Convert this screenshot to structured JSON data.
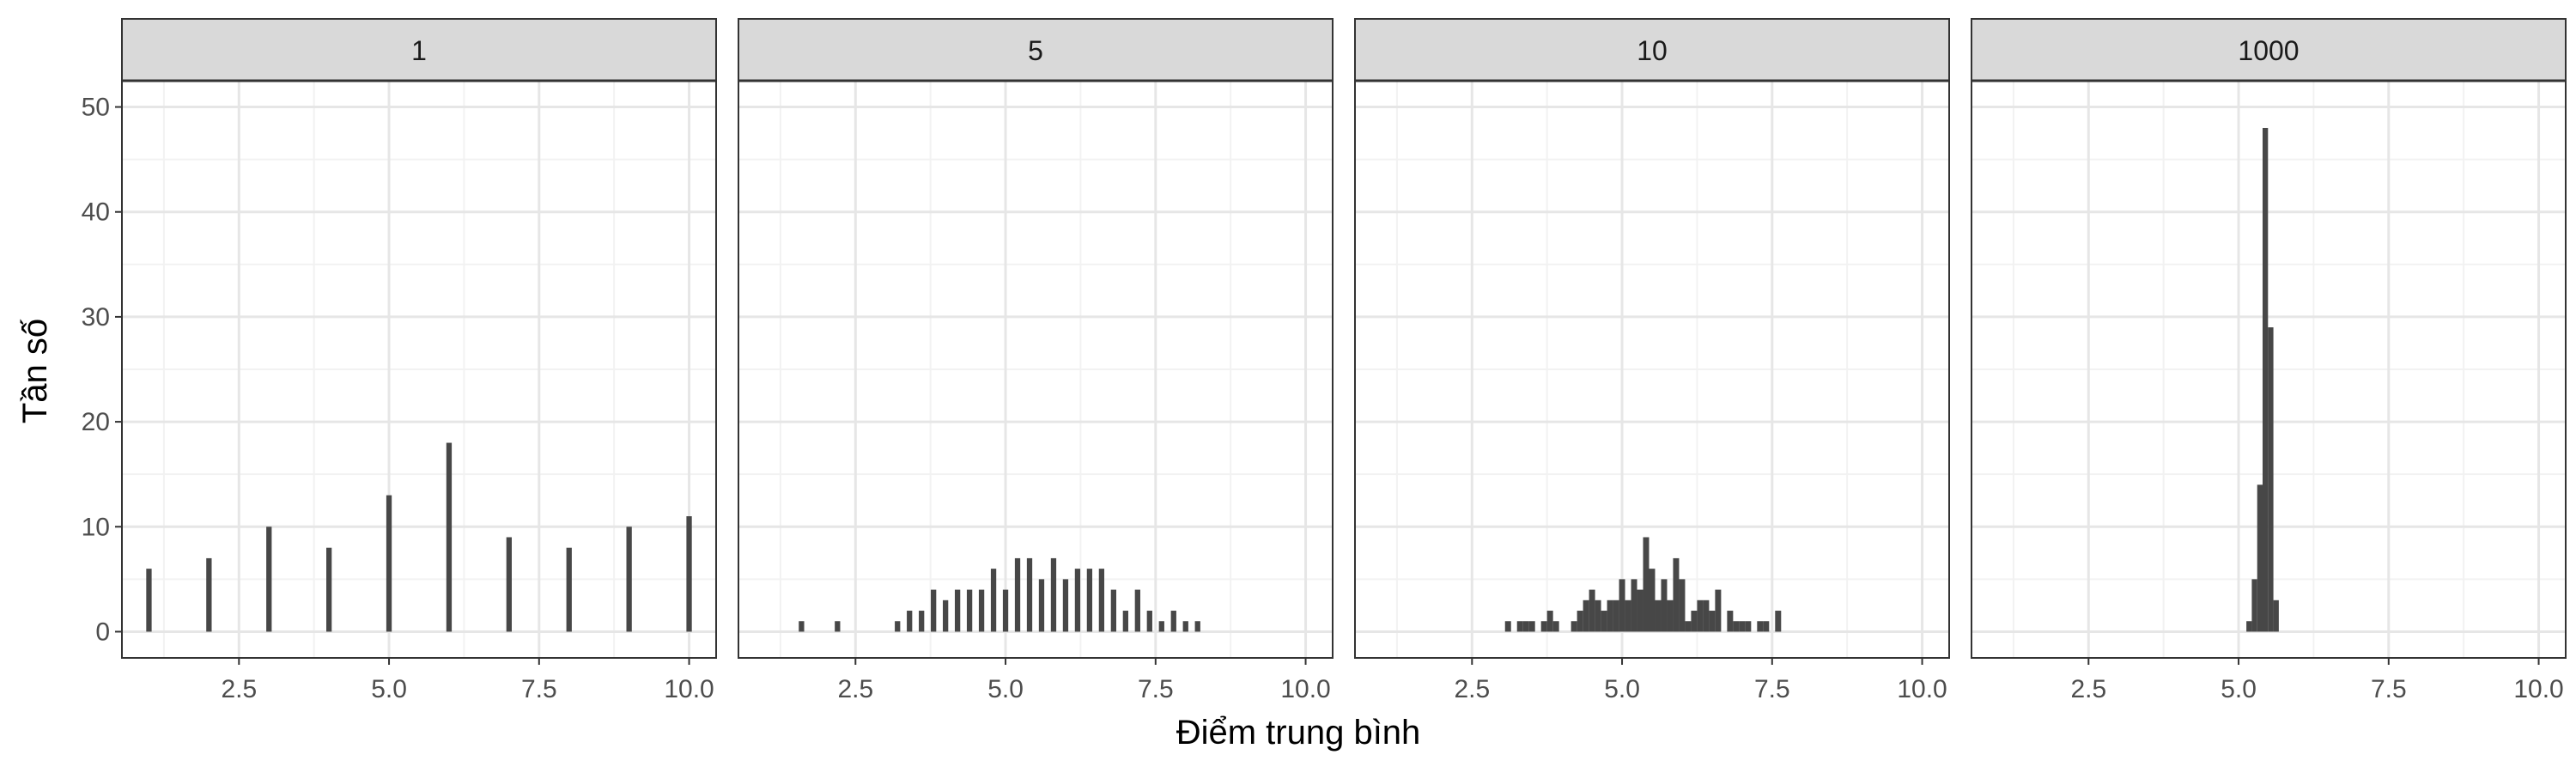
{
  "colors": {
    "bar": "#474747",
    "strip_bg": "#d9d9d9",
    "grid_major": "#e6e6e6",
    "grid_minor": "#f2f2f2",
    "panel_border": "#333333"
  },
  "chart_data": {
    "type": "bar",
    "facet_variable": "sample size",
    "xlabel": "Điểm trung bình",
    "ylabel": "Tần số",
    "xlim": [
      0.55,
      10.45
    ],
    "ylim": [
      -2.5,
      52.5
    ],
    "x_ticks": [
      "2.5",
      "5.0",
      "7.5",
      "10.0"
    ],
    "y_ticks": [
      "0",
      "10",
      "20",
      "30",
      "40",
      "50"
    ],
    "grid": true,
    "panels": [
      {
        "label": "1",
        "bin_width": 0.09,
        "x": [
          1,
          2,
          3,
          4,
          5,
          6,
          7,
          8,
          9,
          10
        ],
        "values": [
          6,
          7,
          10,
          8,
          13,
          18,
          9,
          8,
          10,
          11
        ]
      },
      {
        "label": "5",
        "bin_width": 0.09,
        "x": [
          1.6,
          2.2,
          3.2,
          3.4,
          3.6,
          3.8,
          4.0,
          4.2,
          4.4,
          4.6,
          4.8,
          5.0,
          5.2,
          5.4,
          5.6,
          5.8,
          6.0,
          6.2,
          6.4,
          6.6,
          6.8,
          7.0,
          7.2,
          7.4,
          7.6,
          7.8,
          8.0,
          8.2
        ],
        "values": [
          1,
          1,
          1,
          2,
          2,
          4,
          3,
          4,
          4,
          4,
          6,
          4,
          7,
          7,
          5,
          7,
          5,
          6,
          6,
          6,
          4,
          2,
          4,
          2,
          1,
          2,
          1,
          1
        ]
      },
      {
        "label": "10",
        "bin_width": 0.1,
        "x": [
          3.1,
          3.3,
          3.4,
          3.5,
          3.7,
          3.8,
          3.9,
          4.2,
          4.3,
          4.4,
          4.5,
          4.6,
          4.7,
          4.8,
          4.9,
          5.0,
          5.1,
          5.2,
          5.3,
          5.4,
          5.5,
          5.6,
          5.7,
          5.8,
          5.9,
          6.0,
          6.1,
          6.2,
          6.3,
          6.4,
          6.5,
          6.6,
          6.8,
          6.9,
          7.0,
          7.1,
          7.3,
          7.4,
          7.6
        ],
        "values": [
          1,
          1,
          1,
          1,
          1,
          2,
          1,
          1,
          2,
          3,
          4,
          3,
          2,
          3,
          3,
          5,
          3,
          5,
          4,
          9,
          6,
          3,
          5,
          3,
          7,
          5,
          1,
          2,
          3,
          3,
          2,
          4,
          2,
          1,
          1,
          1,
          1,
          1,
          2
        ]
      },
      {
        "label": "1000",
        "bin_width": 0.09,
        "x": [
          5.175,
          5.265,
          5.355,
          5.445,
          5.535,
          5.625,
          5.715
        ],
        "values": [
          1,
          5,
          14,
          48,
          29,
          3,
          0
        ]
      }
    ]
  }
}
